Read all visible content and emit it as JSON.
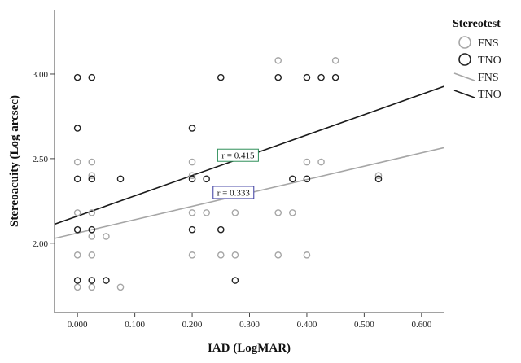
{
  "chart_data": {
    "type": "scatter",
    "xlabel": "IAD (LogMAR)",
    "ylabel": "Stereoacuity (Log arcsec)",
    "xlim": [
      -0.04,
      0.64
    ],
    "ylim": [
      1.59,
      3.38
    ],
    "x_ticks": [
      0.0,
      0.1,
      0.2,
      0.3,
      0.4,
      0.5,
      0.6
    ],
    "x_tick_labels": [
      "0.000",
      "0.100",
      "0.200",
      "0.300",
      "0.400",
      "0.500",
      "0.600"
    ],
    "y_ticks": [
      2.0,
      2.5,
      3.0
    ],
    "y_tick_labels": [
      "2.00",
      "2.50",
      "3.00"
    ],
    "grid": false,
    "legend": {
      "title": "Stereotest",
      "position": "right",
      "entries": [
        {
          "label": "FNS",
          "kind": "marker",
          "color": "#a6a6a6"
        },
        {
          "label": "TNO",
          "kind": "marker",
          "color": "#222222"
        },
        {
          "label": "FNS",
          "kind": "line",
          "color": "#a6a6a6"
        },
        {
          "label": "TNO",
          "kind": "line",
          "color": "#1a1a1a"
        }
      ]
    },
    "series": [
      {
        "name": "FNS",
        "color": "#a6a6a6",
        "points": [
          [
            0.0,
            2.48
          ],
          [
            0.0,
            2.18
          ],
          [
            0.0,
            1.93
          ],
          [
            0.0,
            1.74
          ],
          [
            0.025,
            2.48
          ],
          [
            0.025,
            2.4
          ],
          [
            0.025,
            2.18
          ],
          [
            0.025,
            2.04
          ],
          [
            0.025,
            1.93
          ],
          [
            0.025,
            1.74
          ],
          [
            0.05,
            2.04
          ],
          [
            0.075,
            1.74
          ],
          [
            0.2,
            2.48
          ],
          [
            0.2,
            2.4
          ],
          [
            0.2,
            2.18
          ],
          [
            0.2,
            1.93
          ],
          [
            0.225,
            2.18
          ],
          [
            0.25,
            1.93
          ],
          [
            0.275,
            2.18
          ],
          [
            0.275,
            1.93
          ],
          [
            0.35,
            3.08
          ],
          [
            0.35,
            2.18
          ],
          [
            0.35,
            1.93
          ],
          [
            0.375,
            2.18
          ],
          [
            0.4,
            2.48
          ],
          [
            0.4,
            1.93
          ],
          [
            0.425,
            2.48
          ],
          [
            0.45,
            3.08
          ],
          [
            0.525,
            2.4
          ]
        ]
      },
      {
        "name": "TNO",
        "color": "#222222",
        "points": [
          [
            0.0,
            2.98
          ],
          [
            0.0,
            2.68
          ],
          [
            0.0,
            2.38
          ],
          [
            0.0,
            2.08
          ],
          [
            0.0,
            1.78
          ],
          [
            0.025,
            2.98
          ],
          [
            0.025,
            2.38
          ],
          [
            0.025,
            2.08
          ],
          [
            0.025,
            1.78
          ],
          [
            0.05,
            1.78
          ],
          [
            0.075,
            2.38
          ],
          [
            0.2,
            2.68
          ],
          [
            0.2,
            2.38
          ],
          [
            0.2,
            2.08
          ],
          [
            0.225,
            2.38
          ],
          [
            0.25,
            2.98
          ],
          [
            0.25,
            2.08
          ],
          [
            0.275,
            1.78
          ],
          [
            0.35,
            2.98
          ],
          [
            0.375,
            2.38
          ],
          [
            0.4,
            2.98
          ],
          [
            0.4,
            2.38
          ],
          [
            0.425,
            2.98
          ],
          [
            0.45,
            2.98
          ],
          [
            0.525,
            2.38
          ]
        ]
      }
    ],
    "fit_lines": [
      {
        "name": "FNS",
        "color": "#a6a6a6",
        "intercept": 2.06,
        "slope": 0.79,
        "label": "r = 0.333",
        "label_box_color": "#3a3aa0",
        "label_at": [
          0.272,
          2.3
        ]
      },
      {
        "name": "TNO",
        "color": "#1a1a1a",
        "intercept": 2.16,
        "slope": 1.2,
        "label": "r = 0.415",
        "label_box_color": "#2f8f5a",
        "label_at": [
          0.28,
          2.52
        ]
      }
    ]
  }
}
